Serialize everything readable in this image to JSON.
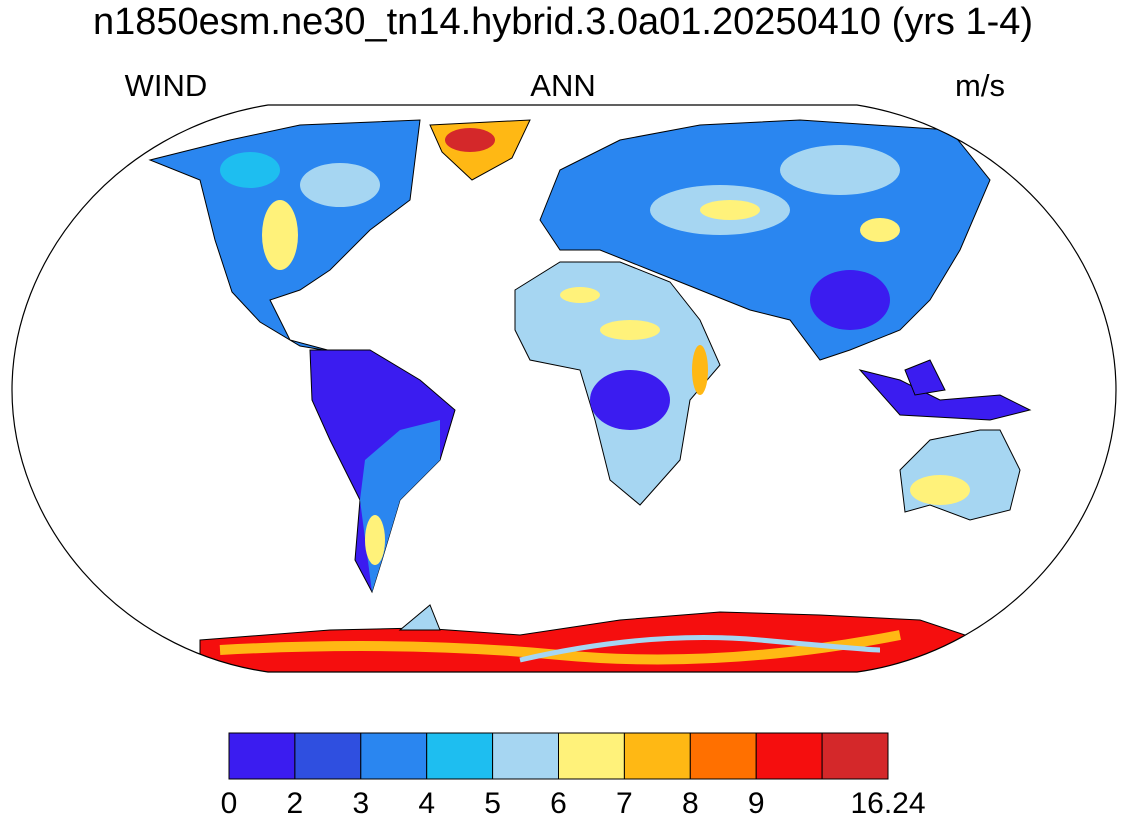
{
  "title": "n1850esm.ne30_tn14.hybrid.3.0a01.20250410 (yrs 1-4)",
  "left_label": "WIND",
  "center_label": "ANN",
  "right_label": "m/s",
  "colorbar": {
    "colors": [
      "#3b1cf0",
      "#2f4fe0",
      "#2a86f0",
      "#1ebef0",
      "#a6d6f2",
      "#fff27a",
      "#ffb814",
      "#ff7000",
      "#f50e0e",
      "#d4282a"
    ],
    "ticks": [
      0,
      2,
      3,
      4,
      5,
      6,
      7,
      8,
      9,
      null,
      16.24
    ]
  }
}
